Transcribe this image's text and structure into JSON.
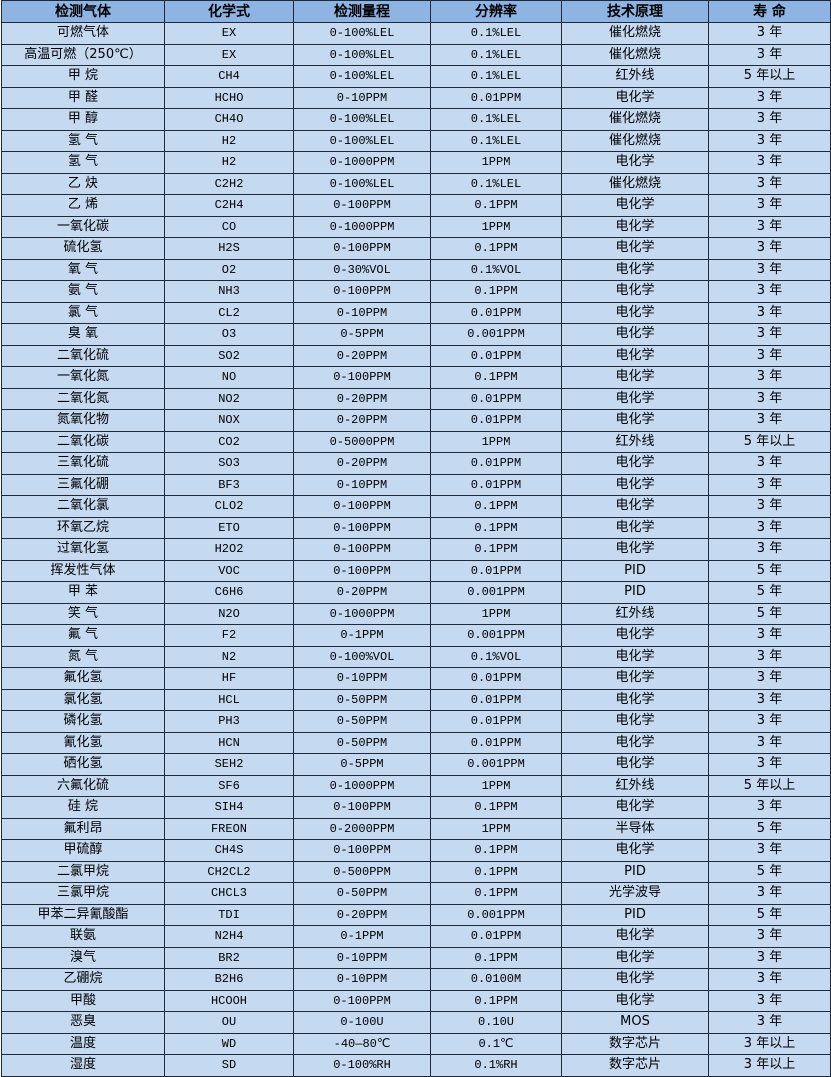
{
  "colors": {
    "header_bg": "#8db4e2",
    "row_bg": "#c5d9f1",
    "border": "#1f2a3a"
  },
  "table": {
    "headers": [
      "检测气体",
      "化学式",
      "检测量程",
      "分辨率",
      "技术原理",
      "寿 命"
    ],
    "rows": [
      [
        "可燃气体",
        "EX",
        "0-100%LEL",
        "0.1%LEL",
        "催化燃烧",
        "3 年"
      ],
      [
        "高温可燃（250℃）",
        "EX",
        "0-100%LEL",
        "0.1%LEL",
        "催化燃烧",
        "3 年"
      ],
      [
        "甲 烷",
        "CH4",
        "0-100%LEL",
        "0.1%LEL",
        "红外线",
        "5 年以上"
      ],
      [
        "甲 醛",
        "HCHO",
        "0-10PPM",
        "0.01PPM",
        "电化学",
        "3 年"
      ],
      [
        "甲 醇",
        "CH4O",
        "0-100%LEL",
        "0.1%LEL",
        "催化燃烧",
        "3 年"
      ],
      [
        "氢 气",
        "H2",
        "0-100%LEL",
        "0.1%LEL",
        "催化燃烧",
        "3 年"
      ],
      [
        "氢 气",
        "H2",
        "0-1000PPM",
        "1PPM",
        "电化学",
        "3 年"
      ],
      [
        "乙 炔",
        "C2H2",
        "0-100%LEL",
        "0.1%LEL",
        "催化燃烧",
        "3 年"
      ],
      [
        "乙 烯",
        "C2H4",
        "0-100PPM",
        "0.1PPM",
        "电化学",
        "3 年"
      ],
      [
        "一氧化碳",
        "CO",
        "0-1000PPM",
        "1PPM",
        "电化学",
        "3 年"
      ],
      [
        "硫化氢",
        "H2S",
        "0-100PPM",
        "0.1PPM",
        "电化学",
        "3 年"
      ],
      [
        "氧 气",
        "O2",
        "0-30%VOL",
        "0.1%VOL",
        "电化学",
        "3 年"
      ],
      [
        "氨 气",
        "NH3",
        "0-100PPM",
        "0.1PPM",
        "电化学",
        "3 年"
      ],
      [
        "氯 气",
        "CL2",
        "0-10PPM",
        "0.01PPM",
        "电化学",
        "3 年"
      ],
      [
        "臭 氧",
        "O3",
        "0-5PPM",
        "0.001PPM",
        "电化学",
        "3 年"
      ],
      [
        "二氧化硫",
        "SO2",
        "0-20PPM",
        "0.01PPM",
        "电化学",
        "3 年"
      ],
      [
        "一氧化氮",
        "NO",
        "0-100PPM",
        "0.1PPM",
        "电化学",
        "3 年"
      ],
      [
        "二氧化氮",
        "NO2",
        "0-20PPM",
        "0.01PPM",
        "电化学",
        "3 年"
      ],
      [
        "氮氧化物",
        "NOX",
        "0-20PPM",
        "0.01PPM",
        "电化学",
        "3 年"
      ],
      [
        "二氧化碳",
        "CO2",
        "0-5000PPM",
        "1PPM",
        "红外线",
        "5 年以上"
      ],
      [
        "三氧化硫",
        "SO3",
        "0-20PPM",
        "0.01PPM",
        "电化学",
        "3 年"
      ],
      [
        "三氟化硼",
        "BF3",
        "0-10PPM",
        "0.01PPM",
        "电化学",
        "3 年"
      ],
      [
        "二氧化氯",
        "CLO2",
        "0-100PPM",
        "0.1PPM",
        "电化学",
        "3 年"
      ],
      [
        "环氧乙烷",
        "ETO",
        "0-100PPM",
        "0.1PPM",
        "电化学",
        "3 年"
      ],
      [
        "过氧化氢",
        "H2O2",
        "0-100PPM",
        "0.1PPM",
        "电化学",
        "3 年"
      ],
      [
        "挥发性气体",
        "VOC",
        "0-100PPM",
        "0.01PPM",
        "PID",
        "5 年"
      ],
      [
        "甲 苯",
        "C6H6",
        "0-20PPM",
        "0.001PPM",
        "PID",
        "5 年"
      ],
      [
        "笑 气",
        "N2O",
        "0-1000PPM",
        "1PPM",
        "红外线",
        "5 年"
      ],
      [
        "氟 气",
        "F2",
        "0-1PPM",
        "0.001PPM",
        "电化学",
        "3 年"
      ],
      [
        "氮 气",
        "N2",
        "0-100%VOL",
        "0.1%VOL",
        "电化学",
        "3 年"
      ],
      [
        "氟化氢",
        "HF",
        "0-10PPM",
        "0.01PPM",
        "电化学",
        "3 年"
      ],
      [
        "氯化氢",
        "HCL",
        "0-50PPM",
        "0.01PPM",
        "电化学",
        "3 年"
      ],
      [
        "磷化氢",
        "PH3",
        "0-50PPM",
        "0.01PPM",
        "电化学",
        "3 年"
      ],
      [
        "氰化氢",
        "HCN",
        "0-50PPM",
        "0.01PPM",
        "电化学",
        "3 年"
      ],
      [
        "硒化氢",
        "SEH2",
        "0-5PPM",
        "0.001PPM",
        "电化学",
        "3 年"
      ],
      [
        "六氟化硫",
        "SF6",
        "0-1000PPM",
        "1PPM",
        "红外线",
        "5 年以上"
      ],
      [
        "硅 烷",
        "SIH4",
        "0-100PPM",
        "0.1PPM",
        "电化学",
        "3 年"
      ],
      [
        "氟利昂",
        "FREON",
        "0-2000PPM",
        "1PPM",
        "半导体",
        "5 年"
      ],
      [
        "甲硫醇",
        "CH4S",
        "0-100PPM",
        "0.1PPM",
        "电化学",
        "3 年"
      ],
      [
        "二氯甲烷",
        "CH2CL2",
        "0-500PPM",
        "0.1PPM",
        "PID",
        "5 年"
      ],
      [
        "三氯甲烷",
        "CHCL3",
        "0-50PPM",
        "0.1PPM",
        "光学波导",
        "3 年"
      ],
      [
        "甲苯二异氰酸酯",
        "TDI",
        "0-20PPM",
        "0.001PPM",
        "PID",
        "5 年"
      ],
      [
        "联氨",
        "N2H4",
        "0-1PPM",
        "0.01PPM",
        "电化学",
        "3 年"
      ],
      [
        "溴气",
        "BR2",
        "0-10PPM",
        "0.1PPM",
        "电化学",
        "3 年"
      ],
      [
        "乙硼烷",
        "B2H6",
        "0-10PPM",
        "0.0100M",
        "电化学",
        "3 年"
      ],
      [
        "甲酸",
        "HCOOH",
        "0-100PPM",
        "0.1PPM",
        "电化学",
        "3 年"
      ],
      [
        "恶臭",
        "OU",
        "0-100U",
        "0.10U",
        "MOS",
        "3 年"
      ],
      [
        "温度",
        "WD",
        "-40—80℃",
        "0.1℃",
        "数字芯片",
        "3 年以上"
      ],
      [
        "湿度",
        "SD",
        "0-100%RH",
        "0.1%RH",
        "数字芯片",
        "3 年以上"
      ]
    ]
  }
}
